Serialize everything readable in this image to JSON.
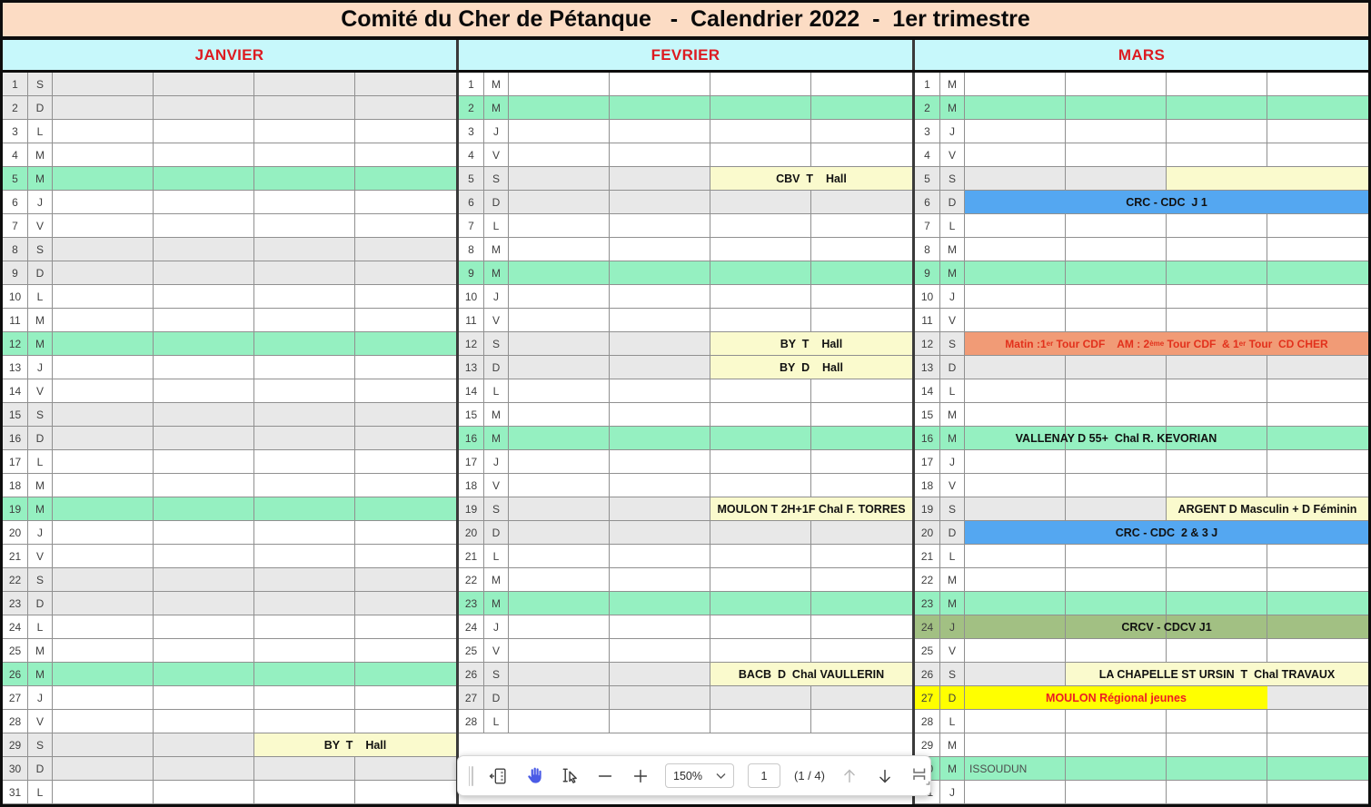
{
  "title": "Comité du Cher de Pétanque   -  Calendrier 2022  -  1er trimestre",
  "colors": {
    "title_bg": "#fcdcc4",
    "header_bg": "#c7f8fb",
    "header_text": "#dd1b21",
    "weekend_row": "#e8e8e8",
    "wednesday_row": "#95f0c1",
    "pale_yellow_event": "#fafacd",
    "blue_event": "#54a7f1",
    "salmon_event": "#f19b76",
    "olive_event": "#a2c083",
    "bright_yellow_event": "#ffff00",
    "event_red_text": "#e2311c",
    "hand_tool_blue": "#4a5be6"
  },
  "months": [
    {
      "name": "JANVIER",
      "days": [
        [
          1,
          "S",
          "w"
        ],
        [
          2,
          "D",
          "w"
        ],
        [
          3,
          "L",
          "n"
        ],
        [
          4,
          "M",
          "n"
        ],
        [
          5,
          "M",
          "g"
        ],
        [
          6,
          "J",
          "n"
        ],
        [
          7,
          "V",
          "n"
        ],
        [
          8,
          "S",
          "w"
        ],
        [
          9,
          "D",
          "w"
        ],
        [
          10,
          "L",
          "n"
        ],
        [
          11,
          "M",
          "n"
        ],
        [
          12,
          "M",
          "g"
        ],
        [
          13,
          "J",
          "n"
        ],
        [
          14,
          "V",
          "n"
        ],
        [
          15,
          "S",
          "w"
        ],
        [
          16,
          "D",
          "w"
        ],
        [
          17,
          "L",
          "n"
        ],
        [
          18,
          "M",
          "n"
        ],
        [
          19,
          "M",
          "g"
        ],
        [
          20,
          "J",
          "n"
        ],
        [
          21,
          "V",
          "n"
        ],
        [
          22,
          "S",
          "w"
        ],
        [
          23,
          "D",
          "w"
        ],
        [
          24,
          "L",
          "n"
        ],
        [
          25,
          "M",
          "n"
        ],
        [
          26,
          "M",
          "g"
        ],
        [
          27,
          "J",
          "n"
        ],
        [
          28,
          "V",
          "n"
        ],
        [
          29,
          "S",
          "w"
        ],
        [
          30,
          "D",
          "w"
        ],
        [
          31,
          "L",
          "n"
        ]
      ],
      "events": [
        {
          "d": 29,
          "c1": 3,
          "c2": 4,
          "bg": "py",
          "t": "BY  T    Hall"
        }
      ]
    },
    {
      "name": "FEVRIER",
      "days": [
        [
          1,
          "M",
          "n"
        ],
        [
          2,
          "M",
          "g"
        ],
        [
          3,
          "J",
          "n"
        ],
        [
          4,
          "V",
          "n"
        ],
        [
          5,
          "S",
          "w"
        ],
        [
          6,
          "D",
          "w"
        ],
        [
          7,
          "L",
          "n"
        ],
        [
          8,
          "M",
          "n"
        ],
        [
          9,
          "M",
          "g"
        ],
        [
          10,
          "J",
          "n"
        ],
        [
          11,
          "V",
          "n"
        ],
        [
          12,
          "S",
          "w"
        ],
        [
          13,
          "D",
          "w"
        ],
        [
          14,
          "L",
          "n"
        ],
        [
          15,
          "M",
          "n"
        ],
        [
          16,
          "M",
          "g"
        ],
        [
          17,
          "J",
          "n"
        ],
        [
          18,
          "V",
          "n"
        ],
        [
          19,
          "S",
          "w"
        ],
        [
          20,
          "D",
          "w"
        ],
        [
          21,
          "L",
          "n"
        ],
        [
          22,
          "M",
          "n"
        ],
        [
          23,
          "M",
          "g"
        ],
        [
          24,
          "J",
          "n"
        ],
        [
          25,
          "V",
          "n"
        ],
        [
          26,
          "S",
          "w"
        ],
        [
          27,
          "D",
          "w"
        ],
        [
          28,
          "L",
          "n"
        ]
      ],
      "events": [
        {
          "d": 5,
          "c1": 3,
          "c2": 4,
          "bg": "py",
          "t": "CBV  T    Hall"
        },
        {
          "d": 12,
          "c1": 3,
          "c2": 4,
          "bg": "py",
          "t": "BY  T    Hall"
        },
        {
          "d": 13,
          "c1": 3,
          "c2": 4,
          "bg": "py",
          "t": "BY  D    Hall"
        },
        {
          "d": 19,
          "c1": 3,
          "c2": 4,
          "bg": "py",
          "t": "MOULON T 2H+1F Chal F. TORRES"
        },
        {
          "d": 26,
          "c1": 3,
          "c2": 4,
          "bg": "py",
          "t": "BACB  D  Chal VAULLERIN"
        }
      ]
    },
    {
      "name": "MARS",
      "days": [
        [
          1,
          "M",
          "n"
        ],
        [
          2,
          "M",
          "g"
        ],
        [
          3,
          "J",
          "n"
        ],
        [
          4,
          "V",
          "n"
        ],
        [
          5,
          "S",
          "w"
        ],
        [
          6,
          "D",
          "w"
        ],
        [
          7,
          "L",
          "n"
        ],
        [
          8,
          "M",
          "n"
        ],
        [
          9,
          "M",
          "g"
        ],
        [
          10,
          "J",
          "n"
        ],
        [
          11,
          "V",
          "n"
        ],
        [
          12,
          "S",
          "w"
        ],
        [
          13,
          "D",
          "w"
        ],
        [
          14,
          "L",
          "n"
        ],
        [
          15,
          "M",
          "n"
        ],
        [
          16,
          "M",
          "g"
        ],
        [
          17,
          "J",
          "n"
        ],
        [
          18,
          "V",
          "n"
        ],
        [
          19,
          "S",
          "w"
        ],
        [
          20,
          "D",
          "w"
        ],
        [
          21,
          "L",
          "n"
        ],
        [
          22,
          "M",
          "n"
        ],
        [
          23,
          "M",
          "g"
        ],
        [
          24,
          "J",
          "o"
        ],
        [
          25,
          "V",
          "n"
        ],
        [
          26,
          "S",
          "w"
        ],
        [
          27,
          "D",
          "y"
        ],
        [
          28,
          "L",
          "n"
        ],
        [
          29,
          "M",
          "n"
        ],
        [
          30,
          "M",
          "g"
        ],
        [
          31,
          "J",
          "n"
        ]
      ],
      "events": [
        {
          "d": 5,
          "c1": 3,
          "c2": 4,
          "bg": "py",
          "t": " "
        },
        {
          "d": 6,
          "c1": 1,
          "c2": 4,
          "bg": "bl",
          "t": "CRC - CDC  J 1"
        },
        {
          "d": 12,
          "c1": 1,
          "c2": 4,
          "bg": "sa",
          "color": "#e2311c",
          "size": "12px",
          "rich": [
            {
              "t": "Matin :1"
            },
            {
              "t": "er",
              "sup": true
            },
            {
              "t": " Tour CDF    AM : 2"
            },
            {
              "t": "ème",
              "sup": true
            },
            {
              "t": " Tour CDF  & 1"
            },
            {
              "t": "er",
              "sup": true
            },
            {
              "t": " Tour  CD CHER"
            }
          ]
        },
        {
          "d": 16,
          "c1": 1,
          "c2": 3,
          "bg": "tr",
          "t": "VALLENAY D 55+  Chal R. KEVORIAN"
        },
        {
          "d": 19,
          "c1": 3,
          "c2": 4,
          "bg": "py",
          "t": "ARGENT D Masculin + D Féminin"
        },
        {
          "d": 20,
          "c1": 1,
          "c2": 4,
          "bg": "bl",
          "t": "CRC - CDC  2 & 3 J"
        },
        {
          "d": 24,
          "c1": 1,
          "c2": 4,
          "bg": "tr",
          "t": "CRCV - CDCV J1"
        },
        {
          "d": 26,
          "c1": 2,
          "c2": 4,
          "bg": "py",
          "t": "LA CHAPELLE ST URSIN  T  Chal TRAVAUX"
        },
        {
          "d": 27,
          "c1": 1,
          "c2": 3,
          "bg": "yl",
          "color": "#ed1c24",
          "t": "MOULON Régional jeunes"
        },
        {
          "d": 30,
          "c1": 1,
          "c2": 1,
          "bg": "tr",
          "t": "ISSOUDUN",
          "align": "left",
          "plain": true,
          "color": "#4d4d4d"
        }
      ]
    }
  ],
  "toolbar": {
    "zoom": "150%",
    "page": "1",
    "page_count": "(1 / 4)",
    "icons": [
      "drag-handle",
      "panel-toggle-icon",
      "hand-tool-icon",
      "select-tool-icon",
      "zoom-out-icon",
      "zoom-in-icon",
      "chevron-down-icon",
      "page-up-icon",
      "page-down-icon",
      "page-view-icon"
    ]
  }
}
